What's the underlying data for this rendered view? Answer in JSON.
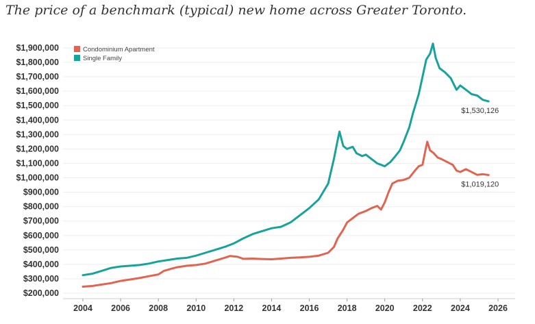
{
  "title": "The price of a benchmark (typical) new home across Greater Toronto.",
  "chart_data": {
    "type": "line",
    "title": "The price of a benchmark (typical) new home across Greater Toronto.",
    "xlabel": "",
    "ylabel": "",
    "xlim": [
      2004,
      2026
    ],
    "ylim": [
      200000,
      1900000
    ],
    "x_ticks": [
      "2004",
      "2006",
      "2008",
      "2010",
      "2012",
      "2014",
      "2016",
      "2018",
      "2020",
      "2022",
      "2024",
      "2026"
    ],
    "y_ticks": [
      {
        "value": 200000,
        "label": "$200,000"
      },
      {
        "value": 300000,
        "label": "$300,000"
      },
      {
        "value": 400000,
        "label": "$400,000"
      },
      {
        "value": 500000,
        "label": "$500,000"
      },
      {
        "value": 600000,
        "label": "$600,000"
      },
      {
        "value": 700000,
        "label": "$700,000"
      },
      {
        "value": 800000,
        "label": "$800,000"
      },
      {
        "value": 900000,
        "label": "$900,000"
      },
      {
        "value": 1000000,
        "label": "$1,000,000"
      },
      {
        "value": 1100000,
        "label": "$1,100,000"
      },
      {
        "value": 1200000,
        "label": "$1,200,000"
      },
      {
        "value": 1300000,
        "label": "$1,300,000"
      },
      {
        "value": 1400000,
        "label": "$1,400,000"
      },
      {
        "value": 1500000,
        "label": "$1,500,000"
      },
      {
        "value": 1600000,
        "label": "$1,600,000"
      },
      {
        "value": 1700000,
        "label": "$1,700,000"
      },
      {
        "value": 1800000,
        "label": "$1,800,000"
      },
      {
        "value": 1900000,
        "label": "$1,900,000"
      }
    ],
    "grid": "horizontal",
    "legend_position": "top-left",
    "series": [
      {
        "name": "Condominium Apartment",
        "color": "#e0644f",
        "end_label": "$1,019,120",
        "points": [
          [
            2004.0,
            245000
          ],
          [
            2004.5,
            250000
          ],
          [
            2005.0,
            260000
          ],
          [
            2005.5,
            270000
          ],
          [
            2006.0,
            285000
          ],
          [
            2006.5,
            295000
          ],
          [
            2007.0,
            305000
          ],
          [
            2007.5,
            318000
          ],
          [
            2008.0,
            330000
          ],
          [
            2008.3,
            355000
          ],
          [
            2008.7,
            370000
          ],
          [
            2009.0,
            380000
          ],
          [
            2009.5,
            390000
          ],
          [
            2010.0,
            395000
          ],
          [
            2010.5,
            405000
          ],
          [
            2011.0,
            425000
          ],
          [
            2011.5,
            445000
          ],
          [
            2011.8,
            458000
          ],
          [
            2012.2,
            452000
          ],
          [
            2012.5,
            438000
          ],
          [
            2013.0,
            440000
          ],
          [
            2013.5,
            437000
          ],
          [
            2014.0,
            435000
          ],
          [
            2014.5,
            440000
          ],
          [
            2015.0,
            445000
          ],
          [
            2015.5,
            448000
          ],
          [
            2016.0,
            452000
          ],
          [
            2016.5,
            460000
          ],
          [
            2017.0,
            480000
          ],
          [
            2017.3,
            520000
          ],
          [
            2017.5,
            580000
          ],
          [
            2017.8,
            640000
          ],
          [
            2018.0,
            690000
          ],
          [
            2018.3,
            720000
          ],
          [
            2018.6,
            750000
          ],
          [
            2019.0,
            770000
          ],
          [
            2019.3,
            790000
          ],
          [
            2019.6,
            805000
          ],
          [
            2019.8,
            780000
          ],
          [
            2020.0,
            830000
          ],
          [
            2020.2,
            900000
          ],
          [
            2020.4,
            960000
          ],
          [
            2020.7,
            980000
          ],
          [
            2021.0,
            985000
          ],
          [
            2021.3,
            1000000
          ],
          [
            2021.6,
            1050000
          ],
          [
            2021.8,
            1080000
          ],
          [
            2022.0,
            1090000
          ],
          [
            2022.15,
            1190000
          ],
          [
            2022.25,
            1250000
          ],
          [
            2022.4,
            1190000
          ],
          [
            2022.6,
            1170000
          ],
          [
            2022.8,
            1140000
          ],
          [
            2023.0,
            1130000
          ],
          [
            2023.3,
            1110000
          ],
          [
            2023.6,
            1090000
          ],
          [
            2023.8,
            1050000
          ],
          [
            2024.0,
            1040000
          ],
          [
            2024.3,
            1060000
          ],
          [
            2024.6,
            1040000
          ],
          [
            2024.9,
            1020000
          ],
          [
            2025.2,
            1025000
          ],
          [
            2025.5,
            1019120
          ]
        ]
      },
      {
        "name": "Single Family",
        "color": "#17a39b",
        "end_label": "$1,530,126",
        "points": [
          [
            2004.0,
            325000
          ],
          [
            2004.5,
            335000
          ],
          [
            2005.0,
            355000
          ],
          [
            2005.5,
            375000
          ],
          [
            2006.0,
            385000
          ],
          [
            2006.5,
            390000
          ],
          [
            2007.0,
            395000
          ],
          [
            2007.5,
            405000
          ],
          [
            2008.0,
            420000
          ],
          [
            2008.5,
            430000
          ],
          [
            2009.0,
            440000
          ],
          [
            2009.5,
            445000
          ],
          [
            2010.0,
            460000
          ],
          [
            2010.5,
            480000
          ],
          [
            2011.0,
            500000
          ],
          [
            2011.5,
            520000
          ],
          [
            2012.0,
            545000
          ],
          [
            2012.5,
            580000
          ],
          [
            2013.0,
            610000
          ],
          [
            2013.5,
            630000
          ],
          [
            2014.0,
            650000
          ],
          [
            2014.5,
            660000
          ],
          [
            2015.0,
            690000
          ],
          [
            2015.5,
            740000
          ],
          [
            2016.0,
            790000
          ],
          [
            2016.5,
            850000
          ],
          [
            2017.0,
            960000
          ],
          [
            2017.3,
            1130000
          ],
          [
            2017.5,
            1260000
          ],
          [
            2017.6,
            1320000
          ],
          [
            2017.8,
            1220000
          ],
          [
            2018.0,
            1200000
          ],
          [
            2018.3,
            1215000
          ],
          [
            2018.5,
            1170000
          ],
          [
            2018.8,
            1150000
          ],
          [
            2019.0,
            1160000
          ],
          [
            2019.3,
            1130000
          ],
          [
            2019.6,
            1100000
          ],
          [
            2020.0,
            1080000
          ],
          [
            2020.3,
            1110000
          ],
          [
            2020.5,
            1140000
          ],
          [
            2020.8,
            1190000
          ],
          [
            2021.0,
            1250000
          ],
          [
            2021.3,
            1350000
          ],
          [
            2021.5,
            1450000
          ],
          [
            2021.8,
            1580000
          ],
          [
            2022.0,
            1700000
          ],
          [
            2022.2,
            1820000
          ],
          [
            2022.4,
            1860000
          ],
          [
            2022.55,
            1930000
          ],
          [
            2022.7,
            1830000
          ],
          [
            2022.9,
            1760000
          ],
          [
            2023.2,
            1730000
          ],
          [
            2023.5,
            1690000
          ],
          [
            2023.8,
            1610000
          ],
          [
            2024.0,
            1640000
          ],
          [
            2024.3,
            1610000
          ],
          [
            2024.6,
            1580000
          ],
          [
            2024.9,
            1570000
          ],
          [
            2025.2,
            1540000
          ],
          [
            2025.5,
            1530126
          ]
        ]
      }
    ]
  }
}
